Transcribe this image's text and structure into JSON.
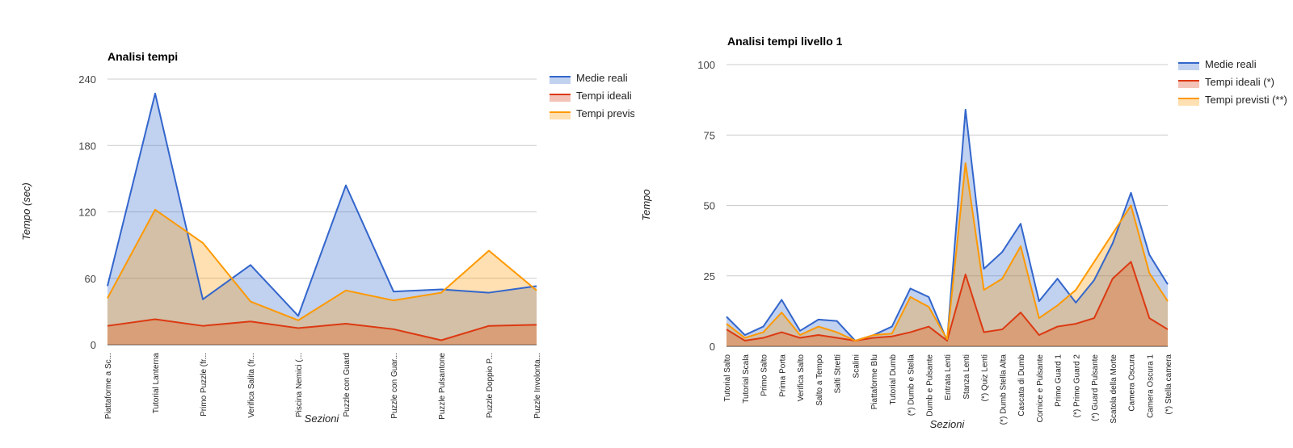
{
  "chart_data": [
    {
      "type": "area",
      "title": "Analisi tempi",
      "xlabel": "Sezioni",
      "ylabel": "Tempo (sec)",
      "ylim": [
        0,
        240
      ],
      "yticks": [
        0,
        60,
        120,
        180,
        240
      ],
      "grid": true,
      "legend_position": "right",
      "categories": [
        "Piattaforme a Sc...",
        "Tutorial Lanterna",
        "Primo Puzzle (fr...",
        "Verifica Salita (fr...",
        "Piscina Nemici (...",
        "Puzzle con Guard",
        "Puzzle con Guar...",
        "Puzzle Pulsantone",
        "Puzzle Doppio P...",
        "Puzzle Involonta..."
      ],
      "series": [
        {
          "name": "Medie reali",
          "color": "#3366cc",
          "values": [
            53,
            227,
            41,
            72,
            26,
            144,
            48,
            50,
            47,
            53
          ]
        },
        {
          "name": "Tempi ideali",
          "color": "#dc3912",
          "values": [
            17,
            23,
            17,
            21,
            15,
            19,
            14,
            4,
            17,
            18
          ]
        },
        {
          "name": "Tempi previsi",
          "color": "#ff9900",
          "values": [
            42,
            122,
            92,
            39,
            22,
            49,
            40,
            47,
            85,
            49
          ]
        }
      ]
    },
    {
      "type": "area",
      "title": "Analisi tempi livello 1",
      "xlabel": "Sezioni",
      "ylabel": "Tempo",
      "ylim": [
        0,
        100
      ],
      "yticks": [
        0,
        25,
        50,
        75,
        100
      ],
      "grid": true,
      "legend_position": "right",
      "categories": [
        "Tutorial Salto",
        "Tutorial Scala",
        "Primo Salto",
        "Prima Porta",
        "Verifica Salto",
        "Salto a Tempo",
        "Salti Stretti",
        "Scalini",
        "Piattaforme Blu",
        "Tutorial Dumb",
        "(*) Dumb e Stella",
        "Dumb e Pulsante",
        "Entrata Lenti",
        "Stanza Lenti",
        "(*) Quiz Lenti",
        "(*) Dumb Stella Alta",
        "Cascata di Dumb",
        "Cornice e Pulsante",
        "Primo Guard 1",
        "(*) Primo Guard 2",
        "(*) Guard Pulsante",
        "Scatola della Morte",
        "Camera Oscura",
        "Camera Oscura 1",
        "(*) Stella camera"
      ],
      "series": [
        {
          "name": "Medie reali",
          "color": "#3366cc",
          "values": [
            10.5,
            4,
            7,
            16.5,
            5.5,
            9.5,
            9,
            2,
            4,
            7,
            20.5,
            17.5,
            2,
            84,
            27.5,
            33.5,
            43.5,
            16,
            24,
            15.5,
            23.5,
            36.5,
            54.5,
            32.5,
            22
          ]
        },
        {
          "name": "Tempi ideali (*)",
          "color": "#dc3912",
          "values": [
            6,
            2,
            3,
            5,
            3,
            4,
            3,
            2,
            3,
            3.5,
            5,
            7,
            2,
            25.5,
            5,
            6,
            12,
            4,
            7,
            8,
            10,
            24,
            30,
            10,
            6
          ]
        },
        {
          "name": "Tempi previsti (**)",
          "color": "#ff9900",
          "values": [
            8,
            3,
            5,
            12,
            4,
            7,
            5,
            2,
            4,
            4.5,
            17.5,
            14,
            2.5,
            65,
            20,
            24,
            35.5,
            10,
            14.5,
            20,
            30,
            40,
            50,
            26,
            16
          ]
        }
      ]
    }
  ]
}
